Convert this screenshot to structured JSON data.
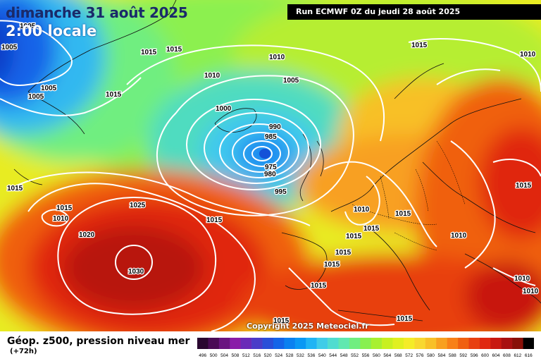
{
  "header": {
    "date": "dimanche 31 août 2025",
    "time": "2:00 locale",
    "run": "Run ECMWF 0Z du jeudi 28 août 2025"
  },
  "copyright": "Copyright 2025 Meteociel.fr",
  "legend": {
    "title": "Géop. z500, pression niveau mer",
    "lead": "(+72h)",
    "ticks": [
      "496",
      "500",
      "504",
      "508",
      "512",
      "516",
      "520",
      "524",
      "528",
      "532",
      "536",
      "540",
      "544",
      "548",
      "552",
      "556",
      "560",
      "564",
      "568",
      "572",
      "576",
      "580",
      "584",
      "588",
      "592",
      "596",
      "600",
      "604",
      "608",
      "612",
      "616"
    ],
    "colors": [
      "#2a0630",
      "#4a0a55",
      "#6a1480",
      "#8a1ca8",
      "#6a2ab8",
      "#4a3cc8",
      "#2a4ed8",
      "#1464e8",
      "#0a80f0",
      "#0a98f4",
      "#20b4f4",
      "#40cce8",
      "#50dcd0",
      "#60e8b0",
      "#70ee80",
      "#88f050",
      "#a8f030",
      "#c8f020",
      "#e0f020",
      "#f4ec28",
      "#f8d830",
      "#f8c028",
      "#f8a020",
      "#f88018",
      "#f06010",
      "#e84010",
      "#e02810",
      "#c81810",
      "#a81010",
      "#881008",
      "#000000"
    ]
  },
  "isobar_labels": [
    {
      "text": "1005"
    },
    {
      "text": "1005"
    },
    {
      "text": "1005"
    },
    {
      "text": "1005"
    },
    {
      "text": "1015"
    },
    {
      "text": "1015"
    },
    {
      "text": "1015"
    },
    {
      "text": "1010"
    },
    {
      "text": "1010"
    },
    {
      "text": "1005"
    },
    {
      "text": "1000"
    },
    {
      "text": "990"
    },
    {
      "text": "985"
    },
    {
      "text": "975"
    },
    {
      "text": "980"
    },
    {
      "text": "995"
    },
    {
      "text": "1015"
    },
    {
      "text": "1010"
    },
    {
      "text": "1015"
    },
    {
      "text": "1015"
    },
    {
      "text": "1010"
    },
    {
      "text": "1025"
    },
    {
      "text": "1020"
    },
    {
      "text": "1030"
    },
    {
      "text": "1015"
    },
    {
      "text": "1010"
    },
    {
      "text": "1015"
    },
    {
      "text": "1015"
    },
    {
      "text": "1015"
    },
    {
      "text": "1015"
    },
    {
      "text": "1015"
    },
    {
      "text": "1010"
    },
    {
      "text": "1015"
    },
    {
      "text": "1010"
    },
    {
      "text": "1010"
    },
    {
      "text": "1015"
    },
    {
      "text": "1015"
    },
    {
      "text": "1015"
    }
  ],
  "map_features": {
    "low_center": "atlantic-low",
    "high_center": "azores-high"
  }
}
